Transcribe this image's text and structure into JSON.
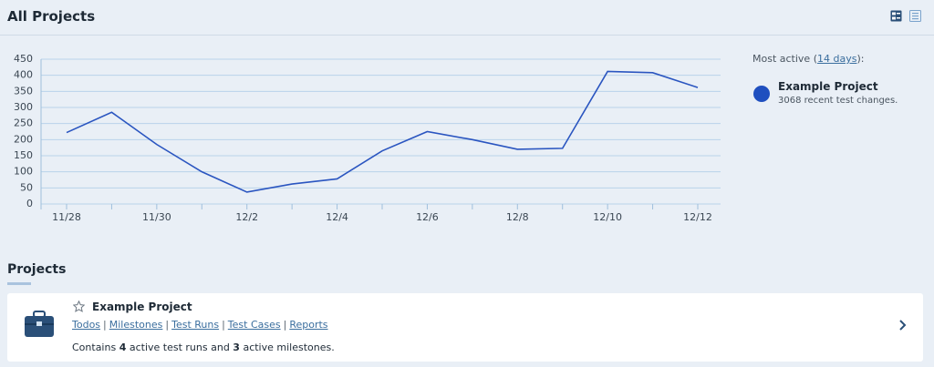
{
  "header": {
    "title": "All Projects"
  },
  "chart_data": {
    "type": "line",
    "categories": [
      "11/28",
      null,
      "11/30",
      null,
      "12/2",
      null,
      "12/4",
      null,
      "12/6",
      null,
      "12/8",
      null,
      "12/10",
      null,
      "12/12"
    ],
    "series": [
      {
        "color": "#2a55c0",
        "values": [
          222,
          285,
          185,
          100,
          37,
          62,
          78,
          165,
          225,
          200,
          170,
          173,
          412,
          408,
          362
        ]
      }
    ],
    "ylim": [
      0,
      450
    ],
    "yticks": [
      0,
      50,
      100,
      150,
      200,
      250,
      300,
      350,
      400,
      450
    ],
    "grid": true
  },
  "sidebar": {
    "label_start": "Most active (",
    "period": "14 days",
    "label_end": "):",
    "project": "Example Project",
    "changes": "3068 recent test changes."
  },
  "projects": {
    "title": "Projects",
    "items": [
      {
        "name": "Example Project",
        "links": [
          "Todos",
          "Milestones",
          "Test Runs",
          "Test Cases",
          "Reports"
        ],
        "separator": "|",
        "description": [
          "Contains ",
          4,
          " active test runs and ",
          3,
          " active milestones."
        ]
      }
    ]
  }
}
